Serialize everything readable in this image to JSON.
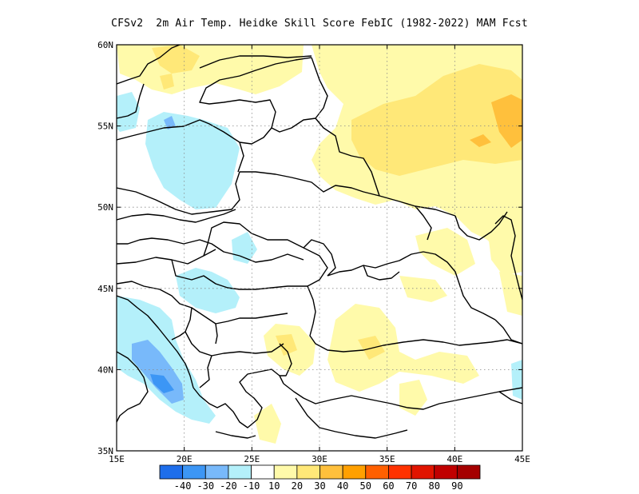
{
  "title": "CFSv2  2m Air Temp. Heidke Skill Score FebIC (1982-2022) MAM Fcst",
  "map": {
    "lon_range": [
      15,
      45
    ],
    "lat_range": [
      35,
      60
    ],
    "lon_ticks": [
      "15E",
      "20E",
      "25E",
      "30E",
      "35E",
      "40E",
      "45E"
    ],
    "lat_ticks": [
      "35N",
      "40N",
      "45N",
      "50N",
      "55N",
      "60N"
    ],
    "grid_lines": "dotted"
  },
  "colorbar": {
    "labels": [
      "-40",
      "-30",
      "-20",
      "-10",
      "10",
      "20",
      "30",
      "40",
      "50",
      "60",
      "70",
      "80",
      "90"
    ],
    "colors": [
      "#1e6eeb",
      "#3c96f5",
      "#78b9fa",
      "#b4f0fa",
      "#ffffff",
      "#fffaaa",
      "#ffe878",
      "#ffc03c",
      "#ffa000",
      "#ff6000",
      "#ff3200",
      "#e11400",
      "#c00000",
      "#a50000"
    ]
  },
  "shading_colors": {
    "light_blue": "#b4f0fa",
    "mid_blue": "#78b9fa",
    "dark_blue": "#3c96f5",
    "light_yellow": "#fffaaa",
    "yellow": "#ffe878",
    "orange": "#ffc03c"
  }
}
